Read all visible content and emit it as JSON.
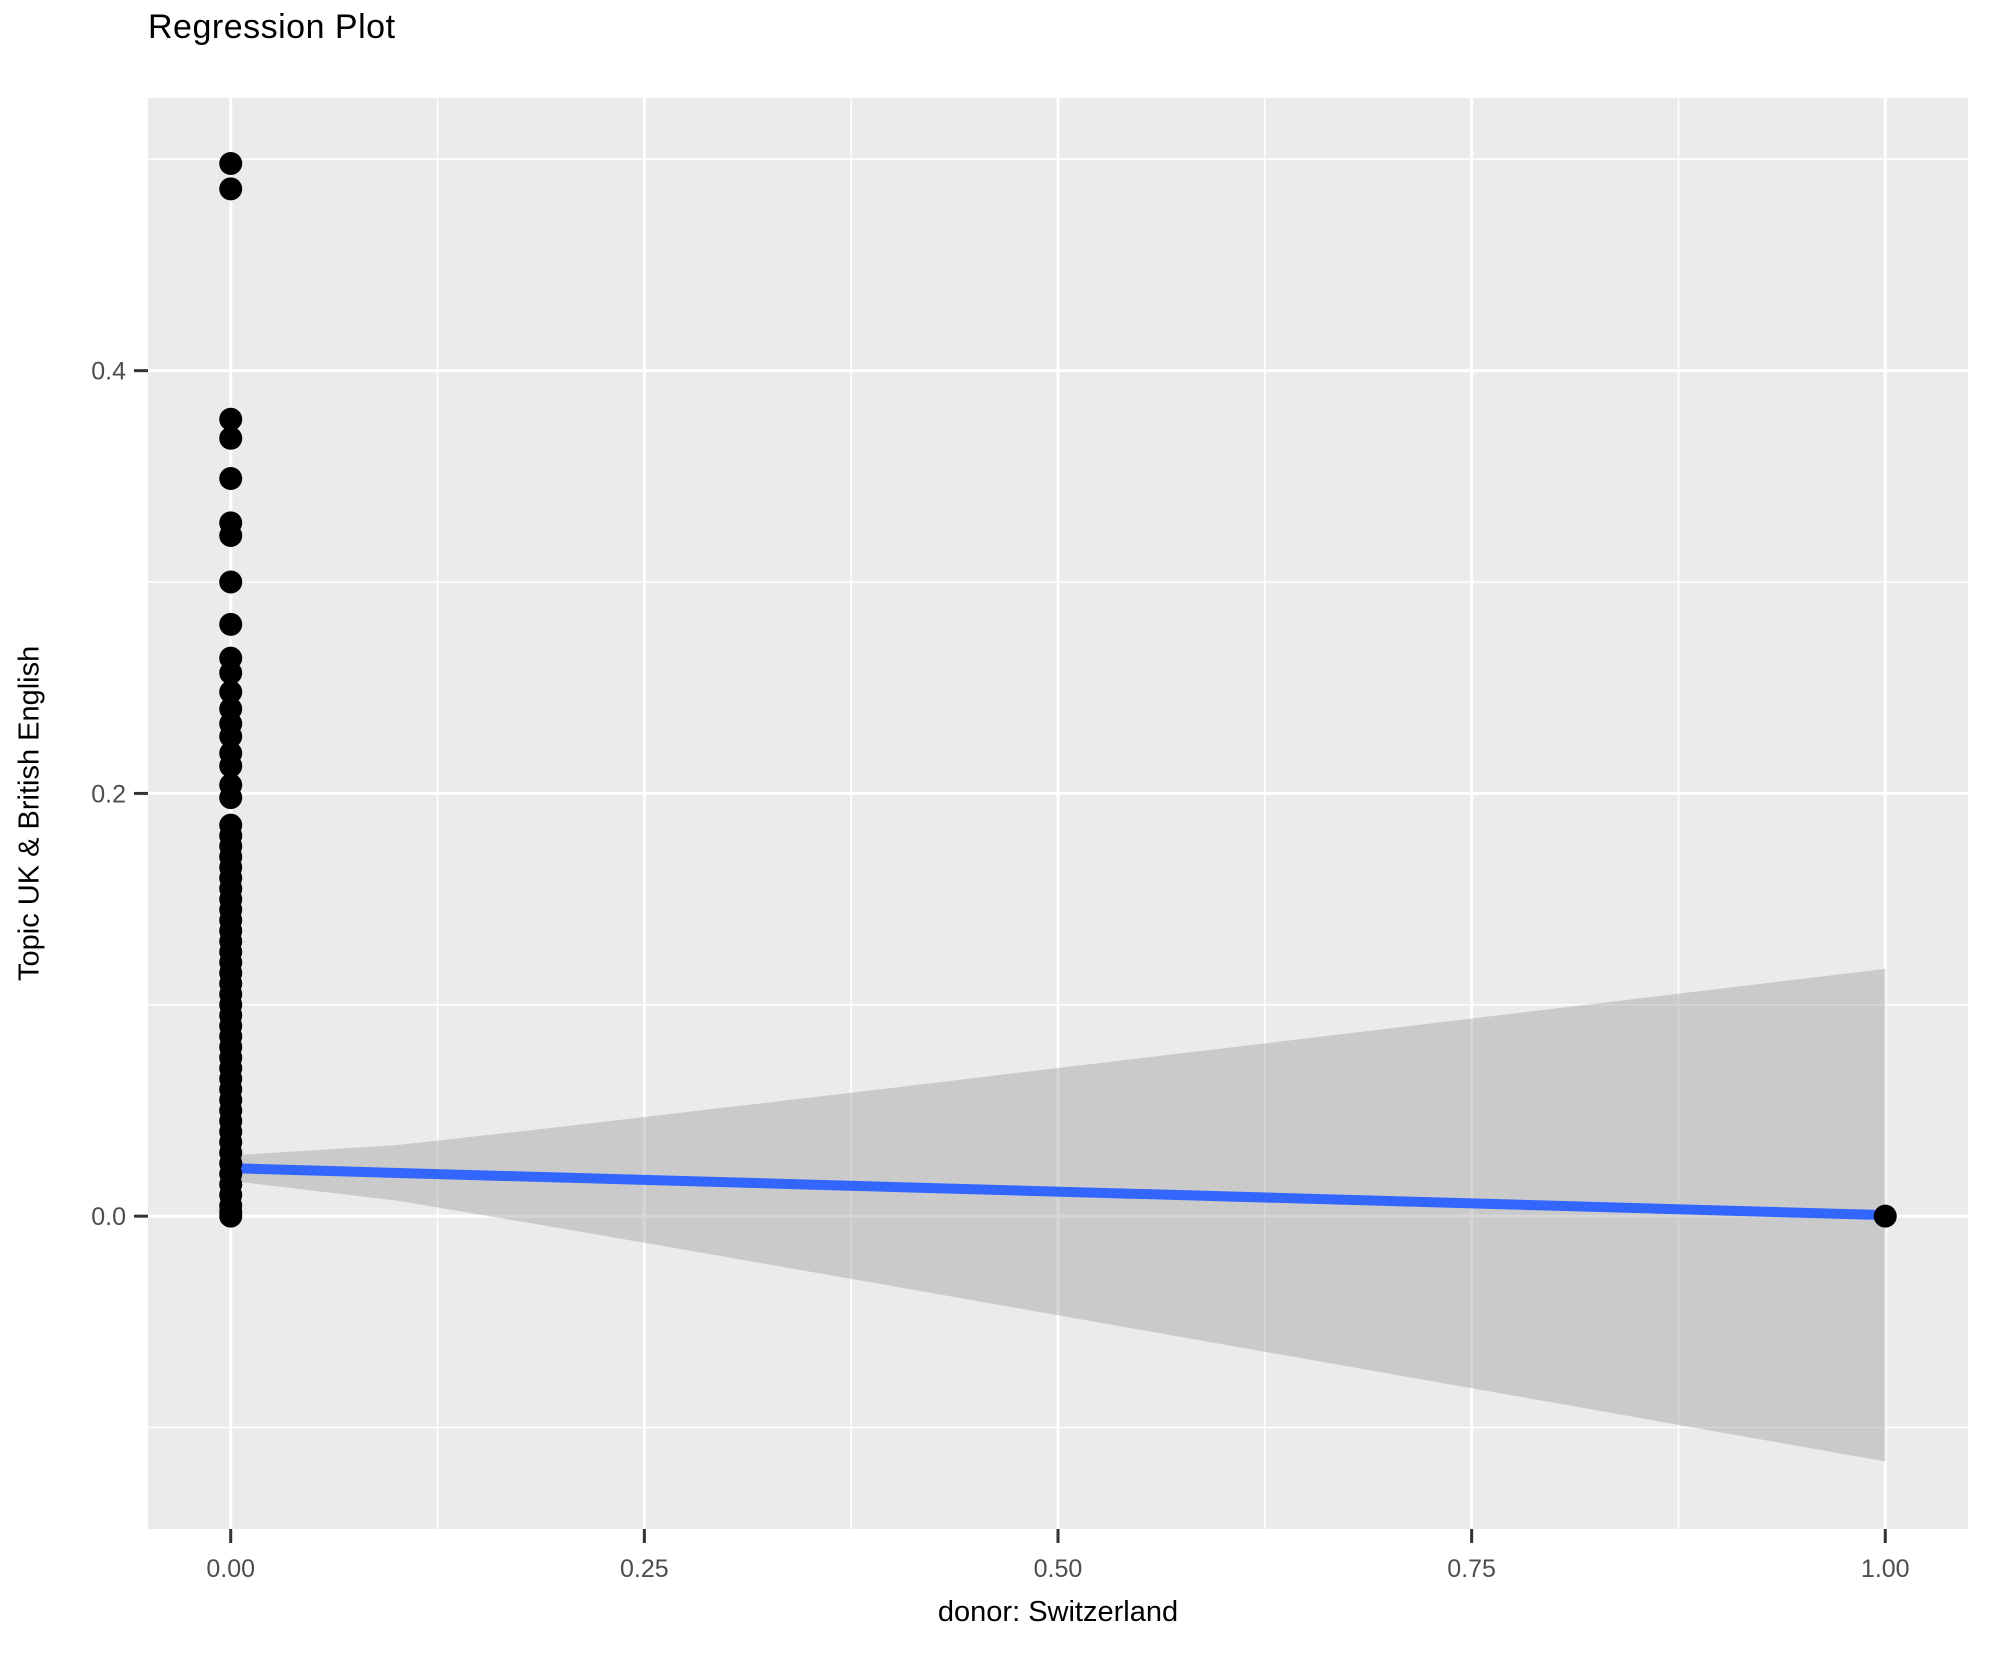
{
  "chart_data": {
    "type": "scatter",
    "title": "Regression Plot",
    "xlabel": "donor: Switzerland",
    "ylabel": "Topic UK & British English",
    "legend": "none",
    "grid": "major and minor gridlines, white on grey panel",
    "x_axis": {
      "lim": [
        -0.05,
        1.05
      ],
      "ticks": [
        0,
        0.25,
        0.5,
        0.75,
        1.0
      ],
      "tick_labels": [
        "0.00",
        "0.25",
        "0.50",
        "0.75",
        "1.00"
      ],
      "minor_ticks": [
        0.125,
        0.375,
        0.625,
        0.875
      ]
    },
    "y_axis": {
      "lim": [
        -0.148,
        0.529
      ],
      "ticks": [
        0,
        0.2,
        0.4
      ],
      "tick_labels": [
        "0.0",
        "0.2",
        "0.4"
      ],
      "minor_ticks": [
        -0.1,
        0.1,
        0.3,
        0.5
      ]
    },
    "series": [
      {
        "name": "observations",
        "type": "scatter",
        "color": "#000000",
        "marker_radius": 11.5,
        "points": [
          [
            0,
            0.498
          ],
          [
            0,
            0.486
          ],
          [
            0,
            0.377
          ],
          [
            0,
            0.368
          ],
          [
            0,
            0.349
          ],
          [
            0,
            0.328
          ],
          [
            0,
            0.322
          ],
          [
            0,
            0.3
          ],
          [
            0,
            0.28
          ],
          [
            0,
            0.264
          ],
          [
            0,
            0.257
          ],
          [
            0,
            0.248
          ],
          [
            0,
            0.24
          ],
          [
            0,
            0.233
          ],
          [
            0,
            0.227
          ],
          [
            0,
            0.219
          ],
          [
            0,
            0.213
          ],
          [
            0,
            0.204
          ],
          [
            0,
            0.198
          ],
          [
            0,
            0.185
          ],
          [
            0,
            0.18
          ],
          [
            0,
            0.175
          ],
          [
            0,
            0.17
          ],
          [
            0,
            0.165
          ],
          [
            0,
            0.16
          ],
          [
            0,
            0.155
          ],
          [
            0,
            0.15
          ],
          [
            0,
            0.145
          ],
          [
            0,
            0.14
          ],
          [
            0,
            0.135
          ],
          [
            0,
            0.13
          ],
          [
            0,
            0.125
          ],
          [
            0,
            0.12
          ],
          [
            0,
            0.115
          ],
          [
            0,
            0.11
          ],
          [
            0,
            0.105
          ],
          [
            0,
            0.1
          ],
          [
            0,
            0.095
          ],
          [
            0,
            0.09
          ],
          [
            0,
            0.085
          ],
          [
            0,
            0.08
          ],
          [
            0,
            0.075
          ],
          [
            0,
            0.07
          ],
          [
            0,
            0.065
          ],
          [
            0,
            0.06
          ],
          [
            0,
            0.055
          ],
          [
            0,
            0.05
          ],
          [
            0,
            0.045
          ],
          [
            0,
            0.04
          ],
          [
            0,
            0.035
          ],
          [
            0,
            0.03
          ],
          [
            0,
            0.025
          ],
          [
            0,
            0.02
          ],
          [
            0,
            0.015
          ],
          [
            0,
            0.01
          ],
          [
            0,
            0.005
          ],
          [
            0,
            0.002
          ],
          [
            0,
            0.0
          ],
          [
            1,
            0.0
          ]
        ]
      },
      {
        "name": "regression-line",
        "type": "line",
        "color": "#3366FF",
        "width": 10,
        "points": [
          [
            0,
            0.0227
          ],
          [
            1,
            0.0005
          ]
        ]
      },
      {
        "name": "confidence-band",
        "type": "area",
        "color": "#999999",
        "opacity": 0.4,
        "upper": [
          [
            0,
            0.0287
          ],
          [
            0.1,
            0.0336
          ],
          [
            0.2,
            0.0423
          ],
          [
            0.3,
            0.0515
          ],
          [
            0.4,
            0.0607
          ],
          [
            0.5,
            0.0701
          ],
          [
            0.6,
            0.0794
          ],
          [
            0.7,
            0.0888
          ],
          [
            0.8,
            0.0982
          ],
          [
            0.9,
            0.1076
          ],
          [
            1,
            0.117
          ]
        ],
        "lower": [
          [
            0,
            0.0167
          ],
          [
            0.1,
            0.0074
          ],
          [
            0.2,
            -0.0058
          ],
          [
            0.3,
            -0.0194
          ],
          [
            0.4,
            -0.0331
          ],
          [
            0.5,
            -0.0469
          ],
          [
            0.6,
            -0.0607
          ],
          [
            0.7,
            -0.0745
          ],
          [
            0.8,
            -0.0883
          ],
          [
            0.9,
            -0.1022
          ],
          [
            1,
            -0.116
          ]
        ]
      }
    ],
    "colors": {
      "panel_background": "#EBEBEB",
      "gridline": "#FFFFFF",
      "tick_label": "#4D4D4D",
      "tick_mark": "#333333",
      "title": "#000000"
    }
  }
}
